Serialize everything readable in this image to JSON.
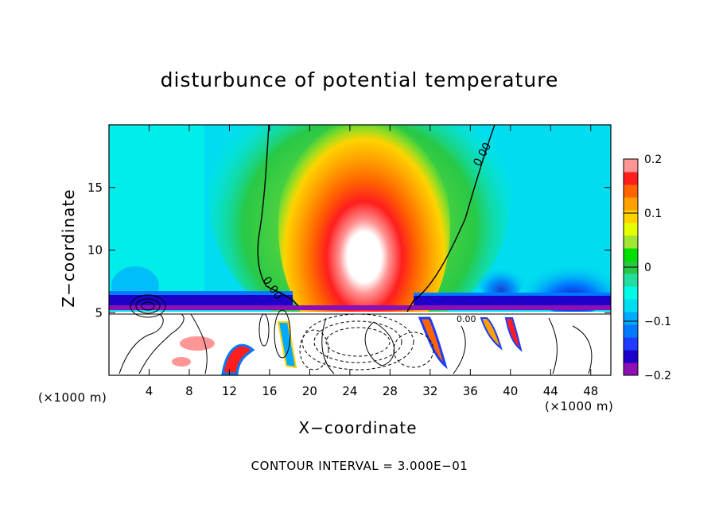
{
  "chart_data": {
    "type": "heatmap",
    "title": "disturbunce of potential temperature",
    "xlabel": "X−coordinate",
    "ylabel": "Z−coordinate",
    "x_unit_left": "(×1000 m)",
    "x_unit_right": "(×1000 m)",
    "footnote": "CONTOUR INTERVAL = 3.000E−01",
    "xlim": [
      0,
      50
    ],
    "ylim": [
      0,
      20
    ],
    "x_ticks": [
      "4",
      "8",
      "12",
      "16",
      "20",
      "24",
      "28",
      "32",
      "36",
      "40",
      "44",
      "48"
    ],
    "y_ticks": [
      "5",
      "10",
      "15"
    ],
    "colorbar": {
      "range": [
        -0.2,
        0.2
      ],
      "tick_labels": [
        "0.2",
        "0.1",
        "0",
        "−0.1",
        "−0.2"
      ],
      "levels": [
        -0.2,
        -0.175,
        -0.15,
        -0.125,
        -0.1,
        -0.075,
        -0.05,
        -0.025,
        0,
        0.025,
        0.05,
        0.075,
        0.1,
        0.125,
        0.15,
        0.175,
        0.2
      ],
      "colors": [
        "#8c10b4",
        "#1e00c8",
        "#1e3cff",
        "#0078ff",
        "#00aaff",
        "#00dcf0",
        "#00fae6",
        "#22dca0",
        "#28c846",
        "#00e000",
        "#a0e632",
        "#e6ff00",
        "#ffd200",
        "#ffa000",
        "#ff6400",
        "#ff1e1e",
        "#ff9696"
      ]
    },
    "contour_labels": [
      "0.00",
      "0.00",
      "0.00"
    ],
    "features": [
      {
        "name": "warm plume",
        "x_center": 26,
        "z_center": 8,
        "peak": 0.2
      },
      {
        "name": "cold layer near z=6",
        "z": 6.2,
        "value": -0.2
      },
      {
        "name": "zero contour west",
        "value": 0.0
      },
      {
        "name": "zero contour east",
        "value": 0.0
      }
    ]
  }
}
